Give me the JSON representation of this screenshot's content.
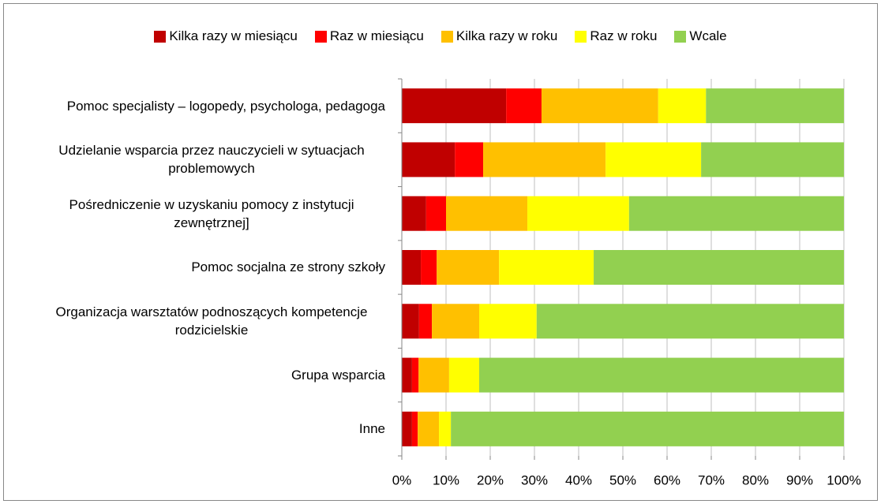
{
  "chart_data": {
    "type": "stacked-barh",
    "categories": [
      "Pomoc specjalisty – logopedy, psychologa, pedagoga",
      "Udzielanie wsparcia przez nauczycieli w sytuacjach problemowych",
      "Pośredniczenie w uzyskaniu pomocy z instytucji zewnętrznej]",
      "Pomoc socjalna ze strony szkoły",
      "Organizacja warsztatów podnoszących kompetencje rodzicielskie",
      "Grupa wsparcia",
      "Inne"
    ],
    "series": [
      {
        "name": "Kilka razy w miesiącu",
        "color": "#c00000",
        "values": [
          23.6,
          12.0,
          5.5,
          4.3,
          3.9,
          2.3,
          2.3
        ]
      },
      {
        "name": "Raz w miesiącu",
        "color": "#ff0000",
        "values": [
          8.0,
          6.4,
          4.5,
          3.6,
          2.9,
          1.5,
          1.3
        ]
      },
      {
        "name": "Kilka razy w roku",
        "color": "#ffc000",
        "values": [
          26.4,
          27.7,
          18.4,
          14.1,
          10.7,
          6.9,
          4.8
        ]
      },
      {
        "name": "Raz w roku",
        "color": "#ffff00",
        "values": [
          10.8,
          21.6,
          23.0,
          21.4,
          13.0,
          6.8,
          2.7
        ]
      },
      {
        "name": "Wcale",
        "color": "#92d050",
        "values": [
          31.2,
          32.3,
          48.6,
          56.6,
          69.5,
          82.5,
          88.9
        ]
      }
    ],
    "xlim": [
      0,
      100
    ],
    "xticks": [
      {
        "value": 0,
        "label": "0%"
      },
      {
        "value": 10,
        "label": "10%"
      },
      {
        "value": 20,
        "label": "20%"
      },
      {
        "value": 30,
        "label": "30%"
      },
      {
        "value": 40,
        "label": "40%"
      },
      {
        "value": 50,
        "label": "50%"
      },
      {
        "value": 60,
        "label": "60%"
      },
      {
        "value": 70,
        "label": "70%"
      },
      {
        "value": 80,
        "label": "80%"
      },
      {
        "value": 90,
        "label": "90%"
      },
      {
        "value": 100,
        "label": "100%"
      }
    ],
    "grid": true,
    "legend": "top"
  }
}
